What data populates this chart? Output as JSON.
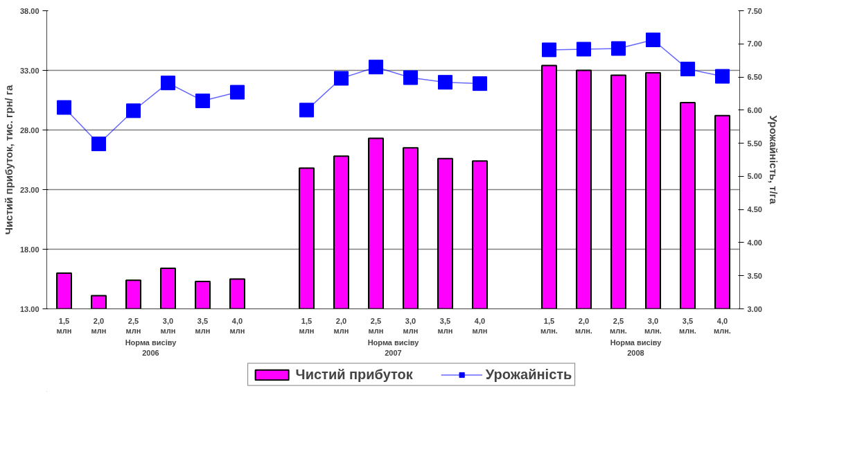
{
  "chart_data": {
    "type": "bar",
    "categories": [
      "1,5\nмлн",
      "2,0\nмлн",
      "2,5\nмлн",
      "3,0\nмлн",
      "3,5\nмлн",
      "4,0\nмлн",
      null,
      "1,5\nмлн",
      "2,0\nмлн",
      "2,5\nмлн",
      "3,0\nмлн",
      "3,5\nмлн",
      "4,0\nмлн",
      null,
      "1,5\nмлн.",
      "2,0\nмлн.",
      "2,5\nмлн.",
      "3,0\nмлн.",
      "3,5\nмлн.",
      "4,0\nмлн."
    ],
    "series": [
      {
        "name": "Чистий прибуток",
        "color": "#ff00ff",
        "values": [
          16.0,
          14.1,
          15.4,
          16.4,
          15.3,
          15.5,
          null,
          24.8,
          25.8,
          27.3,
          26.5,
          25.6,
          25.4,
          null,
          33.4,
          33.0,
          32.6,
          32.8,
          30.3,
          29.2
        ]
      },
      {
        "name": "Урожайність",
        "type": "line",
        "axis": "y2",
        "color": "#0000ff",
        "marker": "square",
        "values": [
          6.04,
          5.49,
          5.99,
          6.41,
          6.14,
          6.27,
          null,
          6.0,
          6.48,
          6.65,
          6.49,
          6.42,
          6.4,
          null,
          6.91,
          6.92,
          6.93,
          7.06,
          6.62,
          6.51
        ]
      }
    ],
    "ylabel": "Чистий прибуток, тис. грн/ га",
    "y2label": "Урожайність, т/га",
    "ylim": [
      13,
      38
    ],
    "yticks": [
      {
        "value": 13,
        "label": "13.00"
      },
      {
        "value": 18,
        "label": "18.00"
      },
      {
        "value": 23,
        "label": "23.00"
      },
      {
        "value": 28,
        "label": "28.00"
      },
      {
        "value": 33,
        "label": "33.00"
      },
      {
        "value": 38,
        "label": "38.00"
      }
    ],
    "y2lim": [
      3,
      7.5
    ],
    "y2ticks": [
      {
        "value": 3,
        "label": "3.00"
      },
      {
        "value": 3.5,
        "label": "3.50"
      },
      {
        "value": 4,
        "label": "4.00"
      },
      {
        "value": 4.5,
        "label": "4.50"
      },
      {
        "value": 5,
        "label": "5.00"
      },
      {
        "value": 5.5,
        "label": "5.50"
      },
      {
        "value": 6,
        "label": "6.00"
      },
      {
        "value": 6.5,
        "label": "6.50"
      },
      {
        "value": 7,
        "label": "7.00"
      },
      {
        "value": 7.5,
        "label": "7.50"
      }
    ],
    "annotations": [
      "Норма висіву",
      "Норма висіву",
      "Норма висіву",
      "2006",
      "2007",
      "2008"
    ],
    "grid": "y",
    "legend": "bottom"
  }
}
